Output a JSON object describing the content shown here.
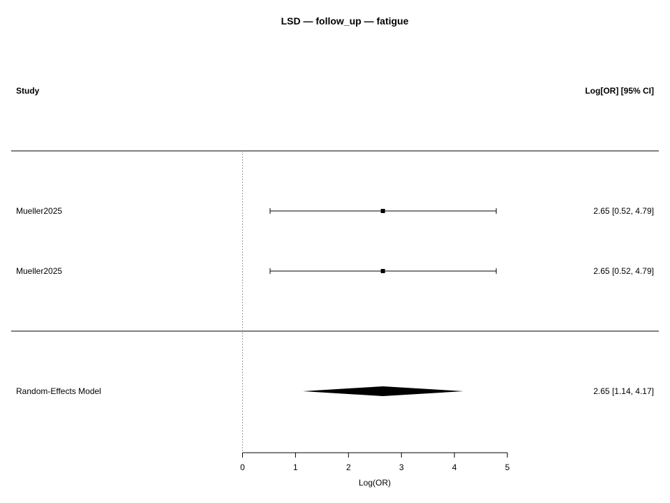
{
  "chart_data": {
    "type": "forest",
    "title": "LSD — follow_up — fatigue",
    "header_left": "Study",
    "header_right": "Log[OR] [95% CI]",
    "xlabel": "Log(OR)",
    "xlim": [
      0,
      5
    ],
    "xticks": [
      "0",
      "1",
      "2",
      "3",
      "4",
      "5"
    ],
    "reference_line": 0,
    "studies": [
      {
        "label": "Mueller2025",
        "estimate": 2.65,
        "ci_lower": 0.52,
        "ci_upper": 4.79,
        "text": "2.65 [0.52, 4.79]"
      },
      {
        "label": "Mueller2025",
        "estimate": 2.65,
        "ci_lower": 0.52,
        "ci_upper": 4.79,
        "text": "2.65 [0.52, 4.79]"
      }
    ],
    "summary": {
      "label": "Random-Effects Model",
      "estimate": 2.65,
      "ci_lower": 1.14,
      "ci_upper": 4.17,
      "text": "2.65 [1.14, 4.17]"
    },
    "colors": {
      "marks": "#000000",
      "reference_line": "#999999"
    }
  }
}
